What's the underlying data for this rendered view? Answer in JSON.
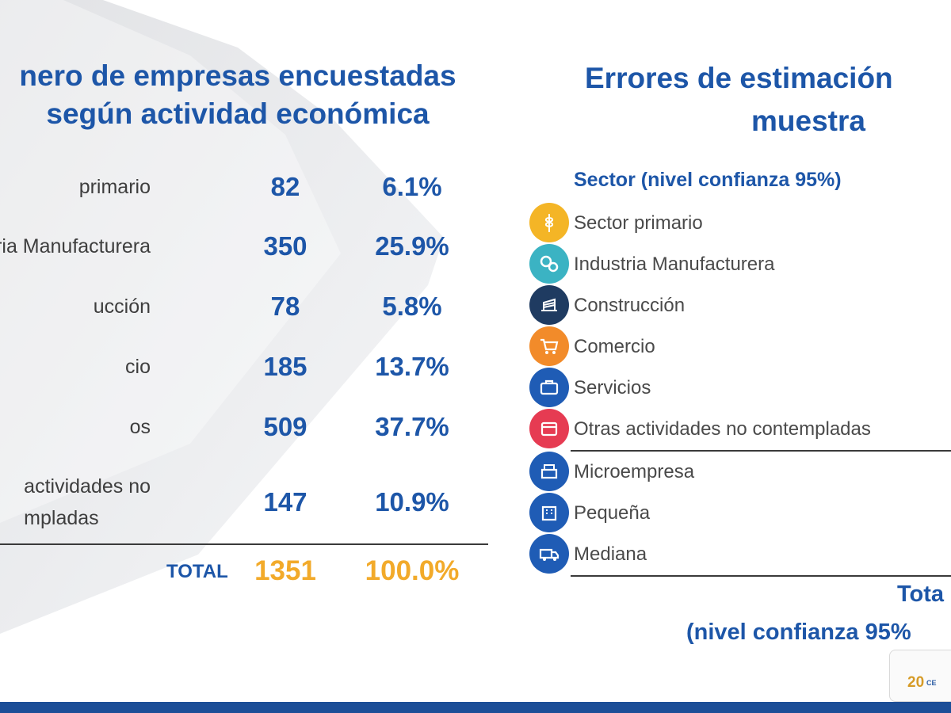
{
  "left_table": {
    "title_line1": "nero de empresas encuestadas",
    "title_line2": "según actividad económica",
    "rows": [
      {
        "label": "primario",
        "count": "82",
        "percent": "6.1%"
      },
      {
        "label": "ria Manufacturera",
        "count": "350",
        "percent": "25.9%"
      },
      {
        "label": "ucción",
        "count": "78",
        "percent": "5.8%"
      },
      {
        "label": "cio",
        "count": "185",
        "percent": "13.7%"
      },
      {
        "label": "os",
        "count": "509",
        "percent": "37.7%"
      },
      {
        "label_line1": "actividades no",
        "label_line2": "mpladas",
        "count": "147",
        "percent": "10.9%"
      }
    ],
    "total": {
      "label": "TOTAL",
      "count": "1351",
      "percent": "100.0%"
    }
  },
  "right_panel": {
    "title_line1": "Errores de estimación",
    "title_line2": "muestra",
    "sector_header": "Sector (nivel confianza 95%)",
    "items": [
      {
        "label": "Sector primario",
        "icon": "wheat-icon",
        "color": "#f4b526"
      },
      {
        "label": "Industria Manufacturera",
        "icon": "gears-icon",
        "color": "#3bb3c3"
      },
      {
        "label": "Construcción",
        "icon": "construction-icon",
        "color": "#1f3b61"
      },
      {
        "label": "Comercio",
        "icon": "shopping-cart-icon",
        "color": "#f28b2a"
      },
      {
        "label": "Servicios",
        "icon": "briefcase-icon",
        "color": "#1f5cb5"
      },
      {
        "label": "Otras actividades no contempladas",
        "icon": "calendar-icon",
        "color": "#e63b52"
      },
      {
        "label": "Microempresa",
        "icon": "cash-register-icon",
        "color": "#1f5cb5"
      },
      {
        "label": "Pequeña",
        "icon": "building-icon",
        "color": "#1f5cb5"
      },
      {
        "label": "Mediana",
        "icon": "truck-icon",
        "color": "#1f5cb5"
      }
    ],
    "total_label": "Tota",
    "confidence_label": "(nivel confianza 95%"
  },
  "colors": {
    "heading_blue": "#1d56a8",
    "total_orange": "#f2aa2a",
    "bottom_bar": "#1c4e97"
  }
}
